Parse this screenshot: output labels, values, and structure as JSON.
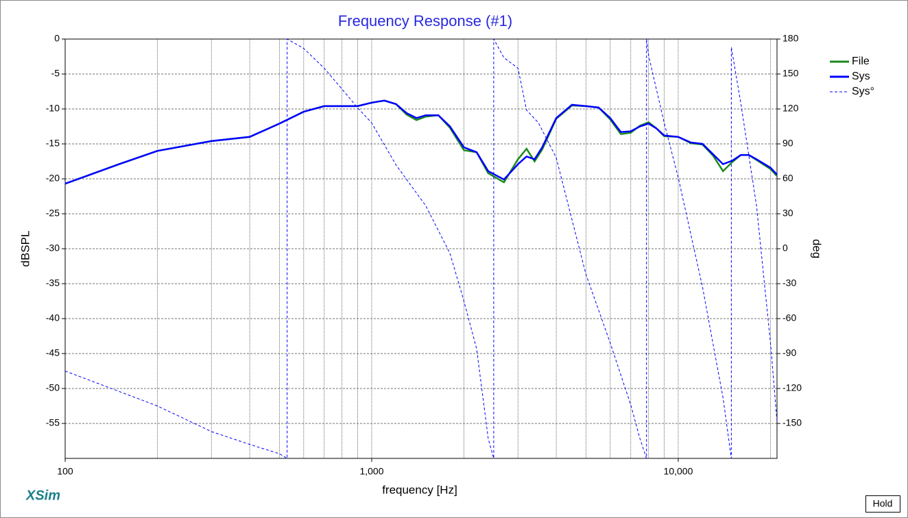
{
  "chart_data": {
    "type": "line",
    "title": "Frequency Response (#1)",
    "xlabel": "frequency [Hz]",
    "ylabel": "dBSPL",
    "y2label": "deg",
    "brand": "XSim",
    "button": "Hold",
    "xscale": "log",
    "xlim": [
      100,
      21000
    ],
    "xticks": [
      100,
      {
        "value": 1000,
        "label": "1,000"
      },
      {
        "value": 10000,
        "label": "10,000"
      }
    ],
    "xgrid": [
      200,
      300,
      400,
      500,
      600,
      700,
      800,
      900,
      2000,
      3000,
      4000,
      5000,
      6000,
      7000,
      8000,
      9000,
      20000
    ],
    "ylim": [
      -60,
      0
    ],
    "yticks": [
      0,
      -5,
      -10,
      -15,
      -20,
      -25,
      -30,
      -35,
      -40,
      -45,
      -50,
      -55
    ],
    "y2lim": [
      -180,
      180
    ],
    "y2ticks": [
      180,
      150,
      120,
      90,
      60,
      30,
      0,
      -30,
      -60,
      -90,
      -120,
      -150
    ],
    "grid": true,
    "legend": "right",
    "series": [
      {
        "name": "File",
        "color": "#1a8a1a",
        "linestyle": "solid",
        "x": [
          100,
          150,
          200,
          300,
          400,
          500,
          600,
          700,
          800,
          900,
          1000,
          1100,
          1200,
          1300,
          1400,
          1500,
          1650,
          1800,
          2000,
          2200,
          2400,
          2700,
          3000,
          3200,
          3400,
          3600,
          4000,
          4500,
          5000,
          5500,
          6000,
          6500,
          7000,
          7500,
          8000,
          8500,
          9000,
          10000,
          11000,
          12000,
          13000,
          14000,
          15000,
          16000,
          17000,
          18000,
          20000,
          21000
        ],
        "values": [
          -20.7,
          -17.9,
          -16.0,
          -14.6,
          -14.0,
          -12.1,
          -10.4,
          -9.6,
          -9.6,
          -9.6,
          -9.1,
          -8.8,
          -9.3,
          -10.8,
          -11.6,
          -11.1,
          -10.9,
          -12.7,
          -15.9,
          -16.2,
          -19.2,
          -20.5,
          -17.2,
          -15.7,
          -17.5,
          -15.8,
          -11.4,
          -9.5,
          -9.6,
          -9.8,
          -11.5,
          -13.6,
          -13.4,
          -12.4,
          -11.9,
          -12.8,
          -13.9,
          -14.0,
          -14.9,
          -15.1,
          -16.7,
          -18.9,
          -17.6,
          -16.6,
          -16.6,
          -17.3,
          -18.6,
          -19.6
        ]
      },
      {
        "name": "Sys",
        "color": "#0000ff",
        "linestyle": "solid",
        "x": [
          100,
          150,
          200,
          300,
          400,
          500,
          600,
          700,
          800,
          900,
          1000,
          1100,
          1200,
          1300,
          1400,
          1500,
          1650,
          1800,
          2000,
          2200,
          2400,
          2700,
          3000,
          3200,
          3400,
          3600,
          4000,
          4500,
          5000,
          5500,
          6000,
          6500,
          7000,
          7500,
          8000,
          8500,
          9000,
          10000,
          11000,
          12000,
          13000,
          14000,
          15000,
          16000,
          17000,
          18000,
          20000,
          21000
        ],
        "values": [
          -20.7,
          -17.9,
          -16.0,
          -14.6,
          -14.0,
          -12.1,
          -10.4,
          -9.6,
          -9.6,
          -9.6,
          -9.1,
          -8.8,
          -9.3,
          -10.6,
          -11.3,
          -10.9,
          -10.9,
          -12.5,
          -15.5,
          -16.2,
          -18.9,
          -20.1,
          -17.9,
          -16.8,
          -17.2,
          -15.5,
          -11.3,
          -9.4,
          -9.6,
          -9.8,
          -11.3,
          -13.3,
          -13.2,
          -12.5,
          -12.1,
          -12.8,
          -13.8,
          -14.0,
          -14.8,
          -15.0,
          -16.5,
          -17.9,
          -17.4,
          -16.6,
          -16.6,
          -17.2,
          -18.4,
          -19.4
        ]
      },
      {
        "name": "Sys°",
        "color": "#0000ff",
        "linestyle": "dashed",
        "axis": "y2",
        "x": [
          100,
          200,
          300,
          400,
          500,
          530,
          530,
          600,
          700,
          800,
          900,
          1000,
          1200,
          1500,
          1800,
          2000,
          2200,
          2400,
          2500,
          2500,
          2700,
          3000,
          3200,
          3500,
          4000,
          4500,
          5000,
          6000,
          7000,
          7500,
          7880,
          7880,
          8000,
          9000,
          10000,
          12000,
          14000,
          14900,
          14900,
          16000,
          18000,
          20000,
          21000
        ],
        "values": [
          -105,
          -135,
          -157,
          -168,
          -176,
          -180,
          180,
          172,
          155,
          137,
          121,
          108,
          72,
          37,
          -4,
          -45,
          -86,
          -163,
          -180,
          180,
          164,
          155,
          119,
          108,
          78,
          25,
          -22,
          -81,
          -134,
          -163,
          -180,
          180,
          166,
          108,
          61,
          -33,
          -128,
          -180,
          173,
          125,
          37,
          -81,
          -148
        ]
      }
    ]
  }
}
